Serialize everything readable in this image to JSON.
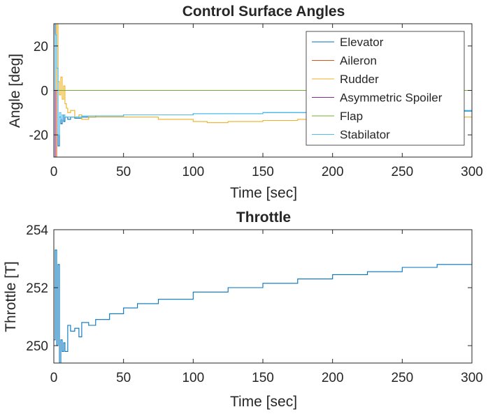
{
  "chart_data": [
    {
      "type": "line",
      "title": "Control Surface Angles",
      "xlabel": "Time [sec]",
      "ylabel": "Angle [deg]",
      "xlim": [
        0,
        300
      ],
      "ylim": [
        -30,
        30
      ],
      "xticks": [
        0,
        50,
        100,
        150,
        200,
        250,
        300
      ],
      "yticks": [
        -20,
        0,
        20
      ],
      "grid": false,
      "legend_position": "top-right",
      "series": [
        {
          "name": "Elevator",
          "color": "#0072BD",
          "x": [
            0,
            1,
            2,
            3,
            4,
            5,
            6,
            7,
            8,
            10,
            12,
            15,
            20,
            30,
            50,
            100,
            150,
            200,
            250,
            300
          ],
          "y": [
            0,
            30,
            20,
            -25,
            -12,
            -15,
            -11,
            -14,
            -12,
            -13,
            -12,
            -12.5,
            -12,
            -11.5,
            -11,
            -10.5,
            -10,
            -9.7,
            -9.3,
            -9
          ]
        },
        {
          "name": "Aileron",
          "color": "#D95319",
          "x": [
            0,
            1,
            2,
            3,
            50,
            100,
            150,
            200,
            250,
            300
          ],
          "y": [
            0,
            -30,
            30,
            30,
            30,
            30,
            30,
            30,
            30,
            30
          ]
        },
        {
          "name": "Rudder",
          "color": "#EDB120",
          "x": [
            0,
            2,
            3,
            4,
            5,
            6,
            7,
            8,
            9,
            10,
            12,
            15,
            18,
            20,
            25,
            30,
            50,
            75,
            100,
            110,
            125,
            150,
            175,
            200,
            225,
            250,
            275,
            300
          ],
          "y": [
            0,
            30,
            4,
            -2,
            6,
            -4,
            2,
            -6,
            -8,
            -10,
            -9,
            -12,
            -11,
            -13,
            -12,
            -12,
            -12,
            -13,
            -14,
            -14.5,
            -14,
            -13.5,
            -13,
            -13,
            -12.5,
            -12.5,
            -12,
            -12
          ]
        },
        {
          "name": "Asymmetric Spoiler",
          "color": "#7E2F8E",
          "x": [
            0,
            1,
            2,
            50,
            100,
            150,
            200,
            250,
            300
          ],
          "y": [
            0,
            -30,
            -30,
            -30,
            -30,
            -30,
            -30,
            -30,
            -30
          ]
        },
        {
          "name": "Flap",
          "color": "#77AC30",
          "x": [
            0,
            300
          ],
          "y": [
            0,
            0
          ]
        },
        {
          "name": "Stabilator",
          "color": "#4DBEEE",
          "x": [
            0,
            1,
            2,
            3,
            4,
            5,
            6,
            8,
            10,
            15,
            20,
            50,
            100,
            150,
            200,
            250,
            300
          ],
          "y": [
            0,
            25,
            10,
            -20,
            -10,
            -13,
            -11,
            -12,
            -12,
            -12,
            -11.5,
            -11,
            -10.5,
            -10,
            -9.5,
            -9,
            -8.7
          ]
        }
      ]
    },
    {
      "type": "line",
      "title": "Throttle",
      "xlabel": "Time [sec]",
      "ylabel": "Throttle [T]",
      "xlim": [
        0,
        300
      ],
      "ylim": [
        249.4,
        254
      ],
      "xticks": [
        0,
        50,
        100,
        150,
        200,
        250,
        300
      ],
      "yticks": [
        250,
        252,
        254
      ],
      "grid": false,
      "series": [
        {
          "color": "#0072BD",
          "x": [
            0,
            1,
            2,
            3,
            4,
            5,
            6,
            7,
            8,
            10,
            12,
            15,
            18,
            20,
            25,
            30,
            40,
            50,
            60,
            75,
            100,
            125,
            150,
            175,
            200,
            225,
            250,
            275,
            300
          ],
          "y": [
            250.2,
            253.3,
            250.0,
            252.8,
            249.4,
            250.2,
            249.8,
            250.1,
            249.8,
            250.7,
            250.5,
            250.6,
            250.3,
            250.8,
            250.7,
            250.9,
            251.1,
            251.3,
            251.45,
            251.6,
            251.85,
            252.0,
            252.15,
            252.3,
            252.45,
            252.55,
            252.7,
            252.8,
            252.9
          ]
        }
      ]
    }
  ]
}
